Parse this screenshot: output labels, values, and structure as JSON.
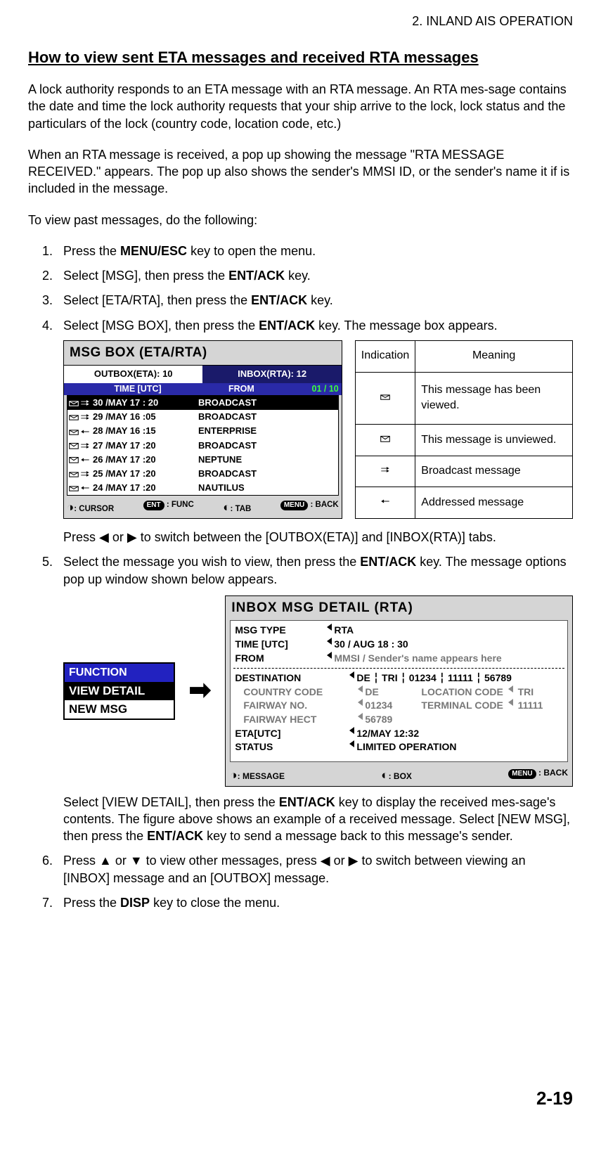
{
  "header": {
    "chapter": "2.  INLAND AIS OPERATION"
  },
  "title": "How to view sent ETA messages and received RTA messages",
  "para1": "A lock authority responds to an ETA message with an RTA message. An RTA mes-sage contains the date and time the lock authority requests that your ship arrive to the lock, lock status and the particulars of the lock (country code, location code, etc.)",
  "para2": "When an RTA message is received, a pop up showing the message \"RTA MESSAGE RECEIVED.\" appears. The pop up also shows the sender's MMSI ID, or the sender's name it if is included in the message.",
  "para3": "To view past messages, do the following:",
  "steps": {
    "s1a": "Press the ",
    "s1b": "MENU/ESC",
    "s1c": " key to open the menu.",
    "s2a": "Select [MSG], then press the ",
    "s2b": "ENT/ACK",
    "s2c": " key.",
    "s3a": "Select [ETA/RTA], then press the ",
    "s3b": "ENT/ACK",
    "s3c": " key.",
    "s4a": "Select [MSG BOX], then press the ",
    "s4b": "ENT/ACK",
    "s4c": " key. The message box appears.",
    "s4post": "Press ◀ or ▶ to switch between the [OUTBOX(ETA)] and [INBOX(RTA)] tabs.",
    "s5a": "Select the message you wish to view, then press the ",
    "s5b": "ENT/ACK",
    "s5c": " key. The message options pop up window shown below appears.",
    "s5post1": "Select [VIEW DETAIL], then press the ",
    "s5post1b": "ENT/ACK",
    "s5post1c": " key to display the received mes-sage's contents. The figure above shows an example of a received message. Select [NEW MSG], then press the ",
    "s5post1d": "ENT/ACK",
    "s5post1e": " key to send a message back to this message's sender.",
    "s6": "Press ▲ or ▼ to view other messages, press ◀ or ▶ to switch between viewing an [INBOX] message and an [OUTBOX] message.",
    "s7a": "Press the ",
    "s7b": "DISP",
    "s7c": " key to close the menu."
  },
  "msgbox": {
    "title": "MSG BOX   (ETA/RTA)",
    "tabs": {
      "outbox": "OUTBOX(ETA): 10",
      "inbox": "INBOX(RTA): 12"
    },
    "hdr": {
      "time": "TIME [UTC]",
      "from": "FROM",
      "page": "01 / 10"
    },
    "rows": [
      {
        "viewed": true,
        "broadcast": true,
        "date": "30 /MAY  17 : 20",
        "from": "BROADCAST",
        "sel": true
      },
      {
        "viewed": true,
        "broadcast": true,
        "date": "29 /MAY  16 :05",
        "from": "BROADCAST"
      },
      {
        "viewed": true,
        "broadcast": false,
        "date": "28 /MAY  16 :15",
        "from": "ENTERPRISE"
      },
      {
        "viewed": false,
        "broadcast": true,
        "date": "27 /MAY  17 :20",
        "from": "BROADCAST"
      },
      {
        "viewed": false,
        "broadcast": false,
        "date": "26 /MAY  17 :20",
        "from": "NEPTUNE"
      },
      {
        "viewed": true,
        "broadcast": true,
        "date": "25 /MAY  17 :20",
        "from": "BROADCAST"
      },
      {
        "viewed": true,
        "broadcast": false,
        "date": "24 /MAY  17 :20",
        "from": "NAUTILUS"
      }
    ],
    "fn": {
      "cursor": ": CURSOR",
      "func": ": FUNC",
      "tab": ": TAB",
      "back": ": BACK",
      "ent": "ENT",
      "menu": "MENU"
    }
  },
  "indications": {
    "hdr": {
      "ind": "Indication",
      "mean": "Meaning"
    },
    "rows": [
      {
        "meaning": "This message has been viewed."
      },
      {
        "meaning": "This message is unviewed."
      },
      {
        "meaning": "Broadcast message"
      },
      {
        "meaning": "Addressed message"
      }
    ]
  },
  "function": {
    "hdr": "FUNCTION",
    "o1": "VIEW DETAIL",
    "o2": "NEW MSG"
  },
  "detail": {
    "title": "INBOX  MSG  DETAIL  (RTA)",
    "rows": {
      "msgtype_l": "MSG TYPE",
      "msgtype_v": "RTA",
      "time_l": "TIME [UTC]",
      "time_v": "30 / AUG 18 : 30",
      "from_l": "FROM",
      "from_v": "MMSI / Sender's name appears here",
      "dest_l": "DESTINATION",
      "dest_v": "DE ╎ TRI ╎ 01234 ╎ 11111 ╎ 56789",
      "cc_l": "COUNTRY CODE",
      "cc_v": "DE",
      "loc_l": "LOCATION  CODE",
      "loc_v": "TRI",
      "fw_l": "FAIRWAY NO.",
      "fw_v": "01234",
      "tc_l": "TERMINAL  CODE",
      "tc_v": "11111",
      "fh_l": "FAIRWAY HECT",
      "fh_v": "56789",
      "eta_l": "ETA[UTC]",
      "eta_v": "12/MAY  12:32",
      "st_l": "STATUS",
      "st_v": "LIMITED OPERATION"
    },
    "fn": {
      "msg": ": MESSAGE",
      "box": ": BOX",
      "back": ": BACK",
      "menu": "MENU"
    }
  },
  "pagenum": "2-19"
}
